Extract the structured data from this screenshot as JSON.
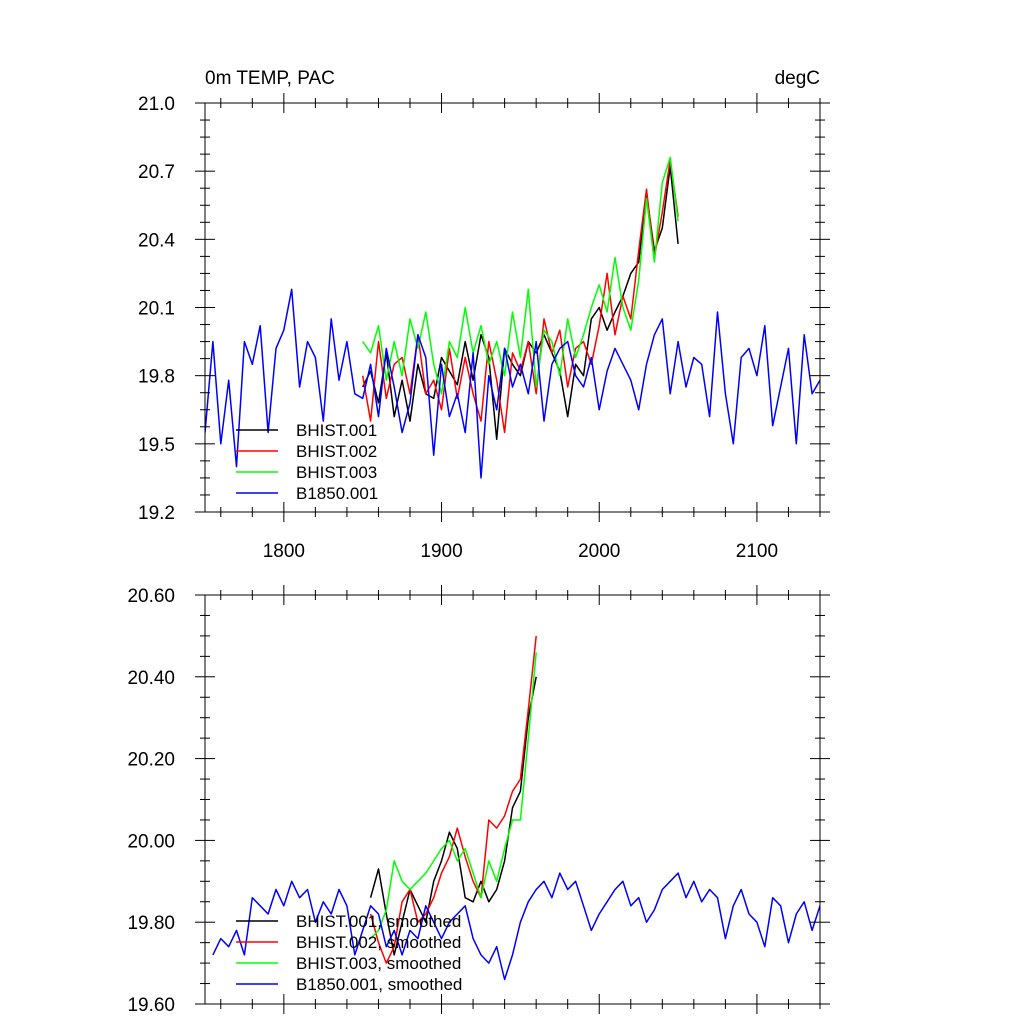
{
  "figure": {
    "title_left": "0m TEMP, PAC",
    "title_right": "degC"
  },
  "chart_data": [
    {
      "type": "line",
      "title": "0m TEMP, PAC",
      "units": "degC",
      "xlim": [
        1750,
        2140
      ],
      "ylim": [
        19.2,
        21.0
      ],
      "xticks": [
        1800,
        1900,
        2000,
        2100
      ],
      "yticks": [
        19.2,
        19.5,
        19.8,
        20.1,
        20.4,
        20.7,
        21.0
      ],
      "ytick_labels": [
        "19.2",
        "19.5",
        "19.8",
        "20.1",
        "20.4",
        "20.7",
        "21.0"
      ],
      "legend": "bottom-left",
      "series": [
        {
          "name": "BHIST.001",
          "color": "#000000",
          "start": 1850,
          "step": 5,
          "values": [
            19.75,
            19.82,
            19.68,
            19.9,
            19.62,
            19.78,
            19.6,
            19.85,
            19.72,
            19.7,
            19.88,
            19.82,
            19.76,
            19.95,
            19.78,
            19.98,
            19.88,
            19.52,
            19.92,
            19.85,
            19.8,
            19.95,
            19.9,
            19.98,
            19.9,
            19.82,
            19.62,
            19.85,
            19.8,
            20.05,
            20.1,
            20.0,
            20.08,
            20.15,
            20.25,
            20.3,
            20.6,
            20.35,
            20.45,
            20.72,
            20.38
          ]
        },
        {
          "name": "BHIST.002",
          "color": "#ff0000",
          "start": 1850,
          "step": 5,
          "values": [
            19.8,
            19.6,
            19.95,
            19.7,
            19.85,
            19.88,
            19.72,
            19.98,
            19.72,
            19.78,
            19.65,
            19.92,
            19.7,
            19.88,
            19.72,
            19.6,
            19.95,
            19.78,
            19.55,
            19.9,
            19.82,
            19.95,
            19.72,
            20.05,
            19.9,
            20.0,
            19.75,
            19.92,
            19.95,
            19.85,
            20.02,
            20.25,
            19.98,
            20.15,
            20.05,
            20.35,
            20.62,
            20.32,
            20.52,
            20.75,
            20.5
          ]
        },
        {
          "name": "BHIST.003",
          "color": "#00ff00",
          "start": 1850,
          "step": 5,
          "values": [
            19.95,
            19.9,
            20.02,
            19.78,
            19.95,
            19.8,
            20.05,
            19.92,
            20.08,
            19.85,
            19.72,
            19.95,
            19.88,
            20.1,
            19.9,
            20.02,
            19.85,
            19.95,
            19.8,
            20.08,
            19.88,
            20.18,
            19.75,
            20.0,
            19.95,
            19.8,
            20.05,
            19.88,
            19.98,
            20.1,
            20.2,
            20.08,
            20.32,
            20.1,
            20.0,
            20.22,
            20.58,
            20.3,
            20.65,
            20.76,
            20.48
          ]
        },
        {
          "name": "B1850.001",
          "color": "#0000ff",
          "start": 1750,
          "step": 5,
          "values": [
            19.55,
            19.95,
            19.5,
            19.78,
            19.4,
            19.95,
            19.85,
            20.02,
            19.55,
            19.92,
            20.0,
            20.18,
            19.75,
            19.95,
            19.88,
            19.6,
            20.05,
            19.78,
            19.95,
            19.72,
            19.7,
            19.85,
            19.62,
            19.92,
            19.75,
            19.55,
            19.68,
            19.98,
            19.88,
            19.45,
            19.85,
            19.62,
            19.72,
            19.55,
            19.9,
            19.35,
            19.8,
            19.65,
            19.92,
            19.75,
            19.85,
            19.72,
            19.95,
            19.6,
            19.85,
            19.92,
            19.95,
            19.8,
            19.75,
            19.88,
            19.65,
            19.82,
            19.92,
            19.85,
            19.78,
            19.65,
            19.85,
            19.98,
            20.05,
            19.72,
            19.95,
            19.75,
            19.88,
            19.85,
            19.62,
            20.08,
            19.72,
            19.5,
            19.88,
            19.92,
            19.8,
            20.02,
            19.58,
            19.75,
            19.92,
            19.5,
            19.98,
            19.72,
            19.78,
            19.85
          ]
        }
      ]
    },
    {
      "type": "line",
      "xlim": [
        1750,
        2140
      ],
      "ylim": [
        19.6,
        20.6
      ],
      "xticks": [
        1800,
        1900,
        2000,
        2100
      ],
      "yticks": [
        19.6,
        19.8,
        20.0,
        20.2,
        20.4,
        20.6
      ],
      "ytick_labels": [
        "19.60",
        "19.80",
        "20.00",
        "20.20",
        "20.40",
        "20.60"
      ],
      "legend": "bottom-left",
      "series": [
        {
          "name": "BHIST.001, smoothed",
          "color": "#000000",
          "start": 1855,
          "step": 5,
          "values": [
            19.86,
            19.93,
            19.82,
            19.72,
            19.8,
            19.88,
            19.84,
            19.8,
            19.9,
            19.95,
            20.02,
            19.98,
            19.86,
            19.85,
            19.9,
            19.85,
            19.88,
            19.95,
            20.08,
            20.12,
            20.3,
            20.4
          ]
        },
        {
          "name": "BHIST.002, smoothed",
          "color": "#ff0000",
          "start": 1855,
          "step": 5,
          "values": [
            19.82,
            19.75,
            19.7,
            19.74,
            19.85,
            19.88,
            19.8,
            19.82,
            19.86,
            19.92,
            19.96,
            20.03,
            19.96,
            19.9,
            19.86,
            20.05,
            20.03,
            20.06,
            20.12,
            20.15,
            20.32,
            20.5
          ]
        },
        {
          "name": "BHIST.003, smoothed",
          "color": "#00ff00",
          "start": 1855,
          "step": 5,
          "values": [
            19.76,
            19.78,
            19.83,
            19.95,
            19.9,
            19.88,
            19.9,
            19.92,
            19.95,
            19.98,
            20.0,
            19.95,
            19.98,
            19.92,
            19.86,
            19.95,
            19.9,
            19.98,
            20.05,
            20.05,
            20.25,
            20.46
          ]
        },
        {
          "name": "B1850.001, smoothed",
          "color": "#0000ff",
          "start": 1755,
          "step": 5,
          "values": [
            19.72,
            19.76,
            19.74,
            19.78,
            19.72,
            19.86,
            19.84,
            19.82,
            19.88,
            19.84,
            19.9,
            19.86,
            19.88,
            19.8,
            19.85,
            19.82,
            19.88,
            19.84,
            19.72,
            19.78,
            19.84,
            19.82,
            19.74,
            19.78,
            19.72,
            19.78,
            19.76,
            19.84,
            19.8,
            19.76,
            19.8,
            19.82,
            19.84,
            19.76,
            19.72,
            19.7,
            19.74,
            19.66,
            19.72,
            19.8,
            19.85,
            19.88,
            19.9,
            19.86,
            19.92,
            19.88,
            19.9,
            19.84,
            19.78,
            19.82,
            19.85,
            19.88,
            19.9,
            19.84,
            19.86,
            19.8,
            19.83,
            19.88,
            19.9,
            19.92,
            19.86,
            19.9,
            19.85,
            19.88,
            19.86,
            19.76,
            19.84,
            19.88,
            19.82,
            19.8,
            19.74,
            19.86,
            19.84,
            19.75,
            19.82,
            19.85,
            19.78,
            19.84,
            19.86
          ]
        }
      ]
    }
  ]
}
